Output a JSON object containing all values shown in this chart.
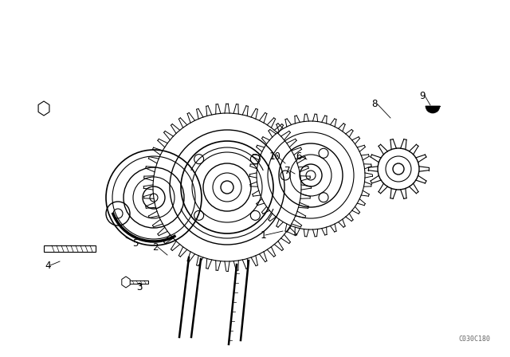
{
  "background_color": "#ffffff",
  "line_color": "#000000",
  "fig_width": 6.4,
  "fig_height": 4.48,
  "dpi": 100,
  "watermark": "C030C180",
  "part_labels": [
    [
      "1",
      330,
      295,
      355,
      290
    ],
    [
      "2",
      195,
      310,
      210,
      320
    ],
    [
      "3",
      175,
      360,
      175,
      355
    ],
    [
      "4",
      60,
      333,
      75,
      328
    ],
    [
      "5",
      170,
      305,
      158,
      298
    ],
    [
      "6",
      375,
      196,
      385,
      200
    ],
    [
      "7",
      360,
      214,
      370,
      218
    ],
    [
      "8",
      470,
      130,
      490,
      148
    ],
    [
      "9",
      530,
      120,
      540,
      132
    ],
    [
      "10",
      345,
      196,
      358,
      205
    ]
  ]
}
